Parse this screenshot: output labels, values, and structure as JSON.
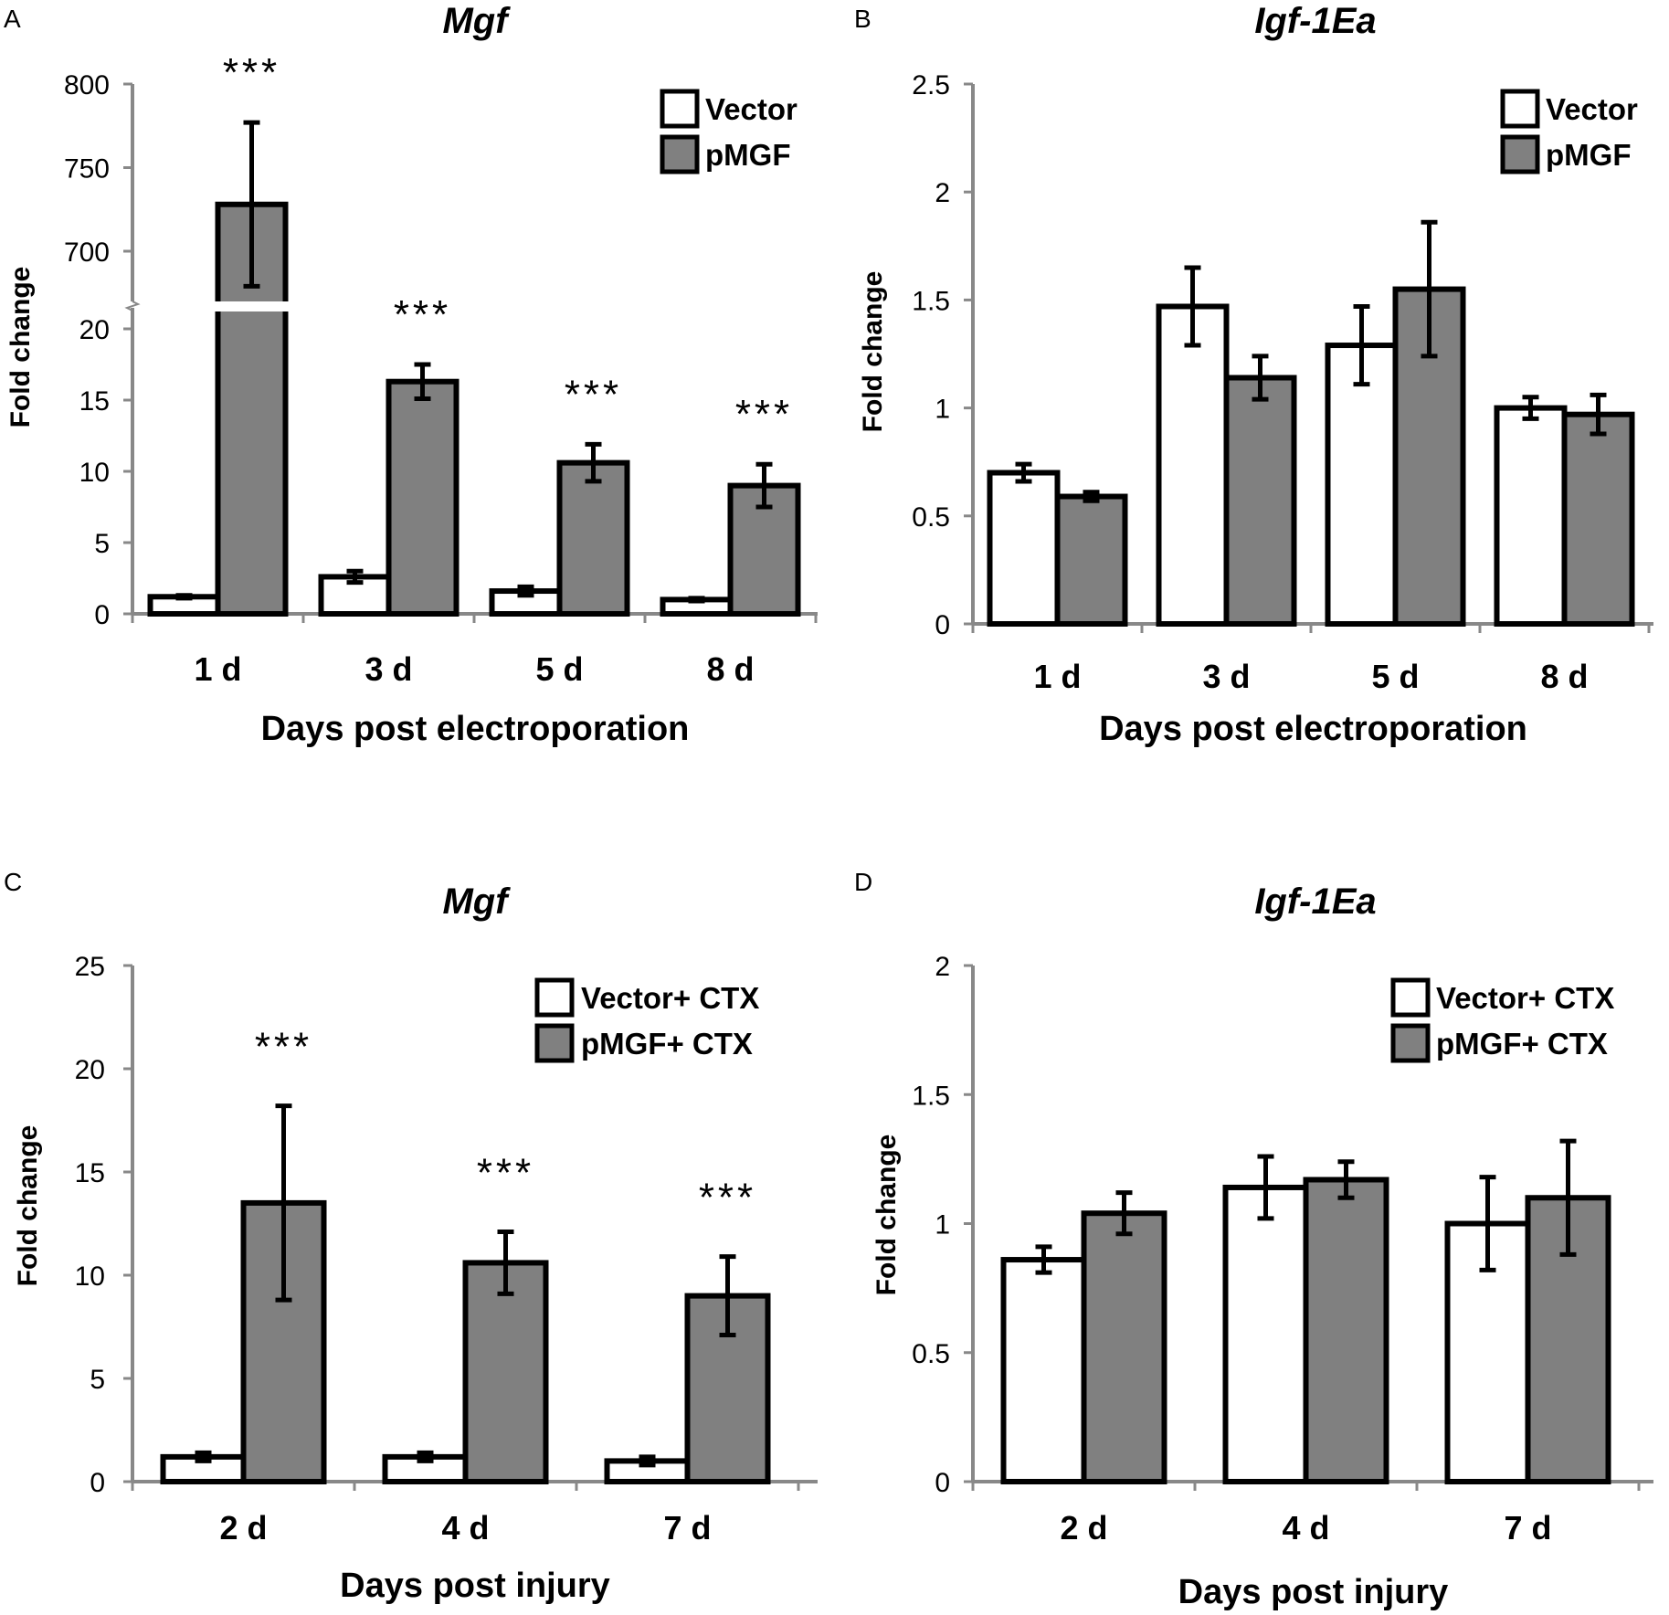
{
  "chart_data": [
    {
      "panel": "A",
      "type": "bar",
      "title": "Mgf",
      "xlabel": "Days post electroporation",
      "ylabel": "Fold change",
      "categories": [
        "1 d",
        "3 d",
        "5 d",
        "8 d"
      ],
      "series": [
        {
          "name": "Vector",
          "color": "#ffffff",
          "values": [
            1.2,
            2.6,
            1.6,
            1.0
          ],
          "errors": [
            0.1,
            0.4,
            0.3,
            0.1
          ]
        },
        {
          "name": "pMGF",
          "color": "#808080",
          "values": [
            728,
            16.3,
            10.6,
            9.0
          ],
          "errors": [
            49,
            1.2,
            1.3,
            1.5
          ]
        }
      ],
      "broken_axis": {
        "lower_range": [
          0,
          20
        ],
        "upper_range": [
          690,
          800
        ]
      },
      "yticks_lower": [
        0,
        5,
        10,
        15,
        20
      ],
      "yticks_upper": [
        700,
        750,
        800
      ],
      "yticks": [
        "0",
        "5",
        "10",
        "15",
        "20",
        "700",
        "750",
        "800"
      ],
      "significance": [
        "***",
        "***",
        "***",
        "***"
      ],
      "legend_position": "top-right"
    },
    {
      "panel": "B",
      "type": "bar",
      "title": "Igf-1Ea",
      "xlabel": "Days post electroporation",
      "ylabel": "Fold change",
      "categories": [
        "1 d",
        "3 d",
        "5 d",
        "8 d"
      ],
      "series": [
        {
          "name": "Vector",
          "color": "#ffffff",
          "values": [
            0.7,
            1.47,
            1.29,
            1.0
          ],
          "errors": [
            0.04,
            0.18,
            0.18,
            0.05
          ]
        },
        {
          "name": "pMGF",
          "color": "#808080",
          "values": [
            0.59,
            1.14,
            1.55,
            0.97
          ],
          "errors": [
            0.02,
            0.1,
            0.31,
            0.09
          ]
        }
      ],
      "ylim": [
        0,
        2.5
      ],
      "yticks": [
        "0",
        "0.5",
        "1",
        "1.5",
        "2",
        "2.5"
      ],
      "legend_position": "top-right"
    },
    {
      "panel": "C",
      "type": "bar",
      "title": "Mgf",
      "xlabel": "Days post injury",
      "ylabel": "Fold change",
      "categories": [
        "2 d",
        "4 d",
        "7 d"
      ],
      "series": [
        {
          "name": "Vector+ CTX",
          "color": "#ffffff",
          "values": [
            1.2,
            1.2,
            1.0
          ],
          "errors": [
            0.2,
            0.2,
            0.2
          ]
        },
        {
          "name": "pMGF+ CTX",
          "color": "#808080",
          "values": [
            13.5,
            10.6,
            9.0
          ],
          "errors": [
            4.7,
            1.5,
            1.9
          ]
        }
      ],
      "ylim": [
        0,
        25
      ],
      "yticks": [
        "0",
        "5",
        "10",
        "15",
        "20",
        "25"
      ],
      "significance": [
        "***",
        "***",
        "***"
      ],
      "legend_position": "top-right"
    },
    {
      "panel": "D",
      "type": "bar",
      "title": "Igf-1Ea",
      "xlabel": "Days post injury",
      "ylabel": "Fold change",
      "categories": [
        "2 d",
        "4 d",
        "7 d"
      ],
      "series": [
        {
          "name": "Vector+ CTX",
          "color": "#ffffff",
          "values": [
            0.86,
            1.14,
            1.0
          ],
          "errors": [
            0.05,
            0.12,
            0.18
          ]
        },
        {
          "name": "pMGF+ CTX",
          "color": "#808080",
          "values": [
            1.04,
            1.17,
            1.1
          ],
          "errors": [
            0.08,
            0.07,
            0.22
          ]
        }
      ],
      "ylim": [
        0,
        2
      ],
      "yticks": [
        "0",
        "0.5",
        "1",
        "1.5",
        "2"
      ],
      "legend_position": "top-right"
    }
  ]
}
